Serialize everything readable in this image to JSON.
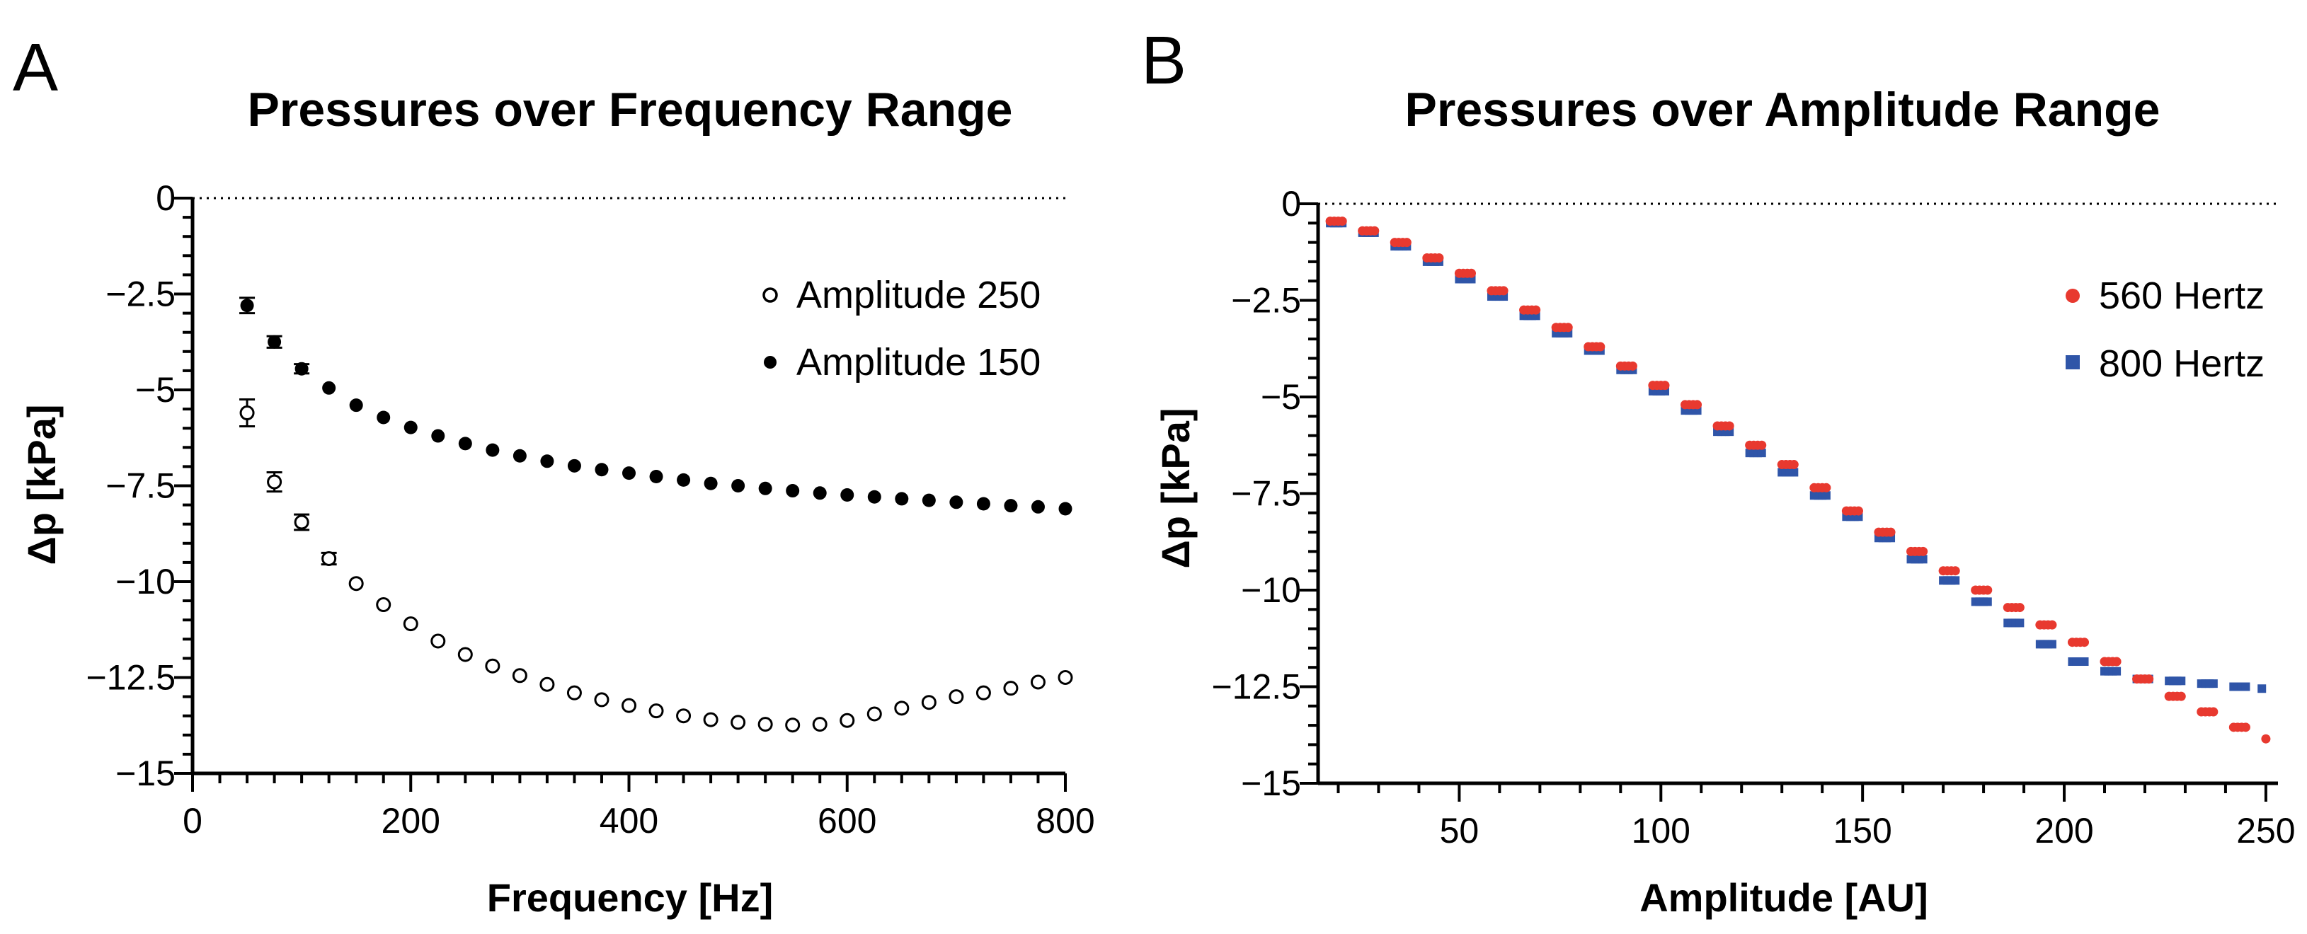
{
  "panels": [
    {
      "letter": "A"
    },
    {
      "letter": "B"
    }
  ],
  "chart_data": [
    {
      "type": "scatter",
      "title": "Pressures over Frequency Range",
      "xlabel": "Frequency [Hz]",
      "ylabel": "Δp [kPa]",
      "xlim": [
        0,
        800
      ],
      "ylim": [
        -15,
        0
      ],
      "xticks": [
        0,
        200,
        400,
        600,
        800
      ],
      "xtick_labels": [
        "0",
        "200",
        "400",
        "600",
        "800"
      ],
      "yticks": [
        0,
        -2.5,
        -5,
        -7.5,
        -10,
        -12.5,
        -15
      ],
      "ytick_labels": [
        "0",
        "−2.5",
        "−5",
        "−7.5",
        "−10",
        "−12.5",
        "−15"
      ],
      "reference_line": 0,
      "legend_position": "top-right",
      "series": [
        {
          "name": "Amplitude 250",
          "marker": "open-circle",
          "color": "#000000",
          "x": [
            50,
            75,
            100,
            125,
            150,
            175,
            200,
            225,
            250,
            275,
            300,
            325,
            350,
            375,
            400,
            425,
            450,
            475,
            500,
            525,
            550,
            575,
            600,
            625,
            650,
            675,
            700,
            725,
            750,
            775,
            800
          ],
          "y": [
            -5.6,
            -7.4,
            -8.45,
            -9.4,
            -10.05,
            -10.6,
            -11.1,
            -11.55,
            -11.9,
            -12.2,
            -12.45,
            -12.68,
            -12.9,
            -13.08,
            -13.23,
            -13.37,
            -13.5,
            -13.6,
            -13.67,
            -13.72,
            -13.74,
            -13.72,
            -13.62,
            -13.45,
            -13.3,
            -13.15,
            -13.0,
            -12.9,
            -12.78,
            -12.62,
            -12.5
          ],
          "err": [
            0.35,
            0.25,
            0.2,
            0.15,
            0,
            0,
            0,
            0,
            0,
            0,
            0,
            0,
            0,
            0,
            0,
            0,
            0,
            0,
            0,
            0,
            0,
            0,
            0,
            0,
            0,
            0,
            0,
            0,
            0,
            0,
            0
          ]
        },
        {
          "name": "Amplitude 150",
          "marker": "filled-circle",
          "color": "#000000",
          "x": [
            50,
            75,
            100,
            125,
            150,
            175,
            200,
            225,
            250,
            275,
            300,
            325,
            350,
            375,
            400,
            425,
            450,
            475,
            500,
            525,
            550,
            575,
            600,
            625,
            650,
            675,
            700,
            725,
            750,
            775,
            800
          ],
          "y": [
            -2.8,
            -3.75,
            -4.45,
            -4.95,
            -5.4,
            -5.72,
            -5.98,
            -6.2,
            -6.4,
            -6.57,
            -6.72,
            -6.86,
            -6.98,
            -7.08,
            -7.17,
            -7.26,
            -7.35,
            -7.44,
            -7.5,
            -7.57,
            -7.63,
            -7.69,
            -7.74,
            -7.79,
            -7.84,
            -7.88,
            -7.93,
            -7.97,
            -8.02,
            -8.05,
            -8.1
          ],
          "err": [
            0.2,
            0.15,
            0.12,
            0,
            0,
            0,
            0,
            0,
            0,
            0,
            0,
            0,
            0,
            0,
            0,
            0,
            0,
            0,
            0,
            0,
            0,
            0,
            0,
            0,
            0,
            0,
            0,
            0,
            0,
            0,
            0
          ]
        }
      ]
    },
    {
      "type": "scatter",
      "title": "Pressures over Amplitude Range",
      "xlabel": "Amplitude [AU]",
      "ylabel": "Δp [kPa]",
      "xlim": [
        15,
        253
      ],
      "ylim": [
        -15,
        0
      ],
      "xticks": [
        50,
        100,
        150,
        200,
        250
      ],
      "xtick_labels": [
        "50",
        "100",
        "150",
        "200",
        "250"
      ],
      "yticks": [
        0,
        -2.5,
        -5,
        -7.5,
        -10,
        -12.5,
        -15
      ],
      "ytick_labels": [
        "0",
        "−2.5",
        "−5",
        "−7.5",
        "−10",
        "−12.5",
        "−15"
      ],
      "reference_line": 0,
      "legend_position": "top-right",
      "step_width": 4,
      "series": [
        {
          "name": "560 Hertz",
          "marker": "filled-circle",
          "color": "#e8392f",
          "x_start": [
            18,
            26,
            34,
            42,
            50,
            58,
            66,
            74,
            82,
            90,
            98,
            106,
            114,
            122,
            130,
            138,
            146,
            154,
            162,
            170,
            178,
            186,
            194,
            202,
            210,
            218,
            226,
            234,
            242
          ],
          "y": [
            -0.45,
            -0.7,
            -1.0,
            -1.4,
            -1.8,
            -2.25,
            -2.75,
            -3.2,
            -3.7,
            -4.2,
            -4.7,
            -5.2,
            -5.75,
            -6.25,
            -6.75,
            -7.35,
            -7.95,
            -8.5,
            -9.0,
            -9.5,
            -10.0,
            -10.45,
            -10.9,
            -11.35,
            -11.85,
            -12.3,
            -12.75,
            -13.15,
            -13.55
          ],
          "tail": [
            {
              "x": 250,
              "y": -13.85
            }
          ]
        },
        {
          "name": "800 Hertz",
          "marker": "filled-square",
          "color": "#2f55a8",
          "x_start": [
            18,
            26,
            34,
            42,
            50,
            58,
            66,
            74,
            82,
            90,
            98,
            106,
            114,
            122,
            130,
            138,
            146,
            154,
            162,
            170,
            178,
            186,
            194,
            202,
            210,
            218,
            226,
            234,
            242
          ],
          "y": [
            -0.5,
            -0.75,
            -1.1,
            -1.5,
            -1.95,
            -2.4,
            -2.9,
            -3.35,
            -3.8,
            -4.3,
            -4.85,
            -5.35,
            -5.9,
            -6.45,
            -6.95,
            -7.55,
            -8.1,
            -8.65,
            -9.2,
            -9.75,
            -10.3,
            -10.85,
            -11.4,
            -11.85,
            -12.1,
            -12.3,
            -12.35,
            -12.42,
            -12.5
          ],
          "tail": [
            {
              "x": 249,
              "y": -12.55
            }
          ]
        }
      ]
    }
  ]
}
